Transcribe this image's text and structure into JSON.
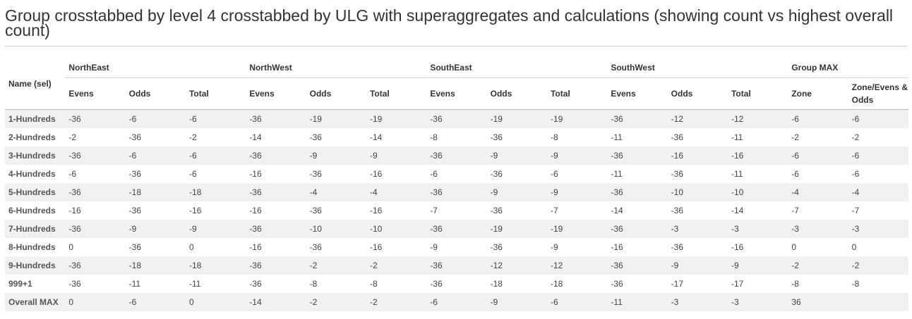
{
  "title": "Group crosstabbed by level 4 crosstabbed by ULG with superaggregates and calculations (showing count vs highest overall count)",
  "table": {
    "row_header": "Name (sel)",
    "groups": [
      "NorthEast",
      "NorthWest",
      "SouthEast",
      "SouthWest",
      "Group MAX"
    ],
    "subheaders": [
      "Evens",
      "Odds",
      "Total",
      "Evens",
      "Odds",
      "Total",
      "Evens",
      "Odds",
      "Total",
      "Evens",
      "Odds",
      "Total",
      "Zone",
      "Zone/Evens & Odds"
    ],
    "rows": [
      {
        "name": "1-Hundreds",
        "values": [
          "-36",
          "-6",
          "-6",
          "-36",
          "-19",
          "-19",
          "-36",
          "-19",
          "-19",
          "-36",
          "-12",
          "-12",
          "-6",
          "-6"
        ]
      },
      {
        "name": "2-Hundreds",
        "values": [
          "-2",
          "-36",
          "-2",
          "-14",
          "-36",
          "-14",
          "-8",
          "-36",
          "-8",
          "-11",
          "-36",
          "-11",
          "-2",
          "-2"
        ]
      },
      {
        "name": "3-Hundreds",
        "values": [
          "-36",
          "-6",
          "-6",
          "-36",
          "-9",
          "-9",
          "-36",
          "-9",
          "-9",
          "-36",
          "-16",
          "-16",
          "-6",
          "-6"
        ]
      },
      {
        "name": "4-Hundreds",
        "values": [
          "-6",
          "-36",
          "-6",
          "-16",
          "-36",
          "-16",
          "-6",
          "-36",
          "-6",
          "-11",
          "-36",
          "-11",
          "-6",
          "-6"
        ]
      },
      {
        "name": "5-Hundreds",
        "values": [
          "-36",
          "-18",
          "-18",
          "-36",
          "-4",
          "-4",
          "-36",
          "-9",
          "-9",
          "-36",
          "-10",
          "-10",
          "-4",
          "-4"
        ]
      },
      {
        "name": "6-Hundreds",
        "values": [
          "-16",
          "-36",
          "-16",
          "-16",
          "-36",
          "-16",
          "-7",
          "-36",
          "-7",
          "-14",
          "-36",
          "-14",
          "-7",
          "-7"
        ]
      },
      {
        "name": "7-Hundreds",
        "values": [
          "-36",
          "-9",
          "-9",
          "-36",
          "-10",
          "-10",
          "-36",
          "-19",
          "-19",
          "-36",
          "-3",
          "-3",
          "-3",
          "-3"
        ]
      },
      {
        "name": "8-Hundreds",
        "values": [
          "0",
          "-36",
          "0",
          "-16",
          "-36",
          "-16",
          "-9",
          "-36",
          "-9",
          "-16",
          "-36",
          "-16",
          "0",
          "0"
        ]
      },
      {
        "name": "9-Hundreds",
        "values": [
          "-36",
          "-18",
          "-18",
          "-36",
          "-2",
          "-2",
          "-36",
          "-12",
          "-12",
          "-36",
          "-9",
          "-9",
          "-2",
          "-2"
        ]
      },
      {
        "name": "999+1",
        "values": [
          "-36",
          "-11",
          "-11",
          "-36",
          "-8",
          "-8",
          "-36",
          "-18",
          "-18",
          "-36",
          "-17",
          "-17",
          "-8",
          "-8"
        ]
      },
      {
        "name": "Overall MAX",
        "values": [
          "0",
          "-6",
          "0",
          "-14",
          "-2",
          "-2",
          "-6",
          "-9",
          "-6",
          "-11",
          "-3",
          "-3",
          "36",
          ""
        ]
      }
    ]
  }
}
